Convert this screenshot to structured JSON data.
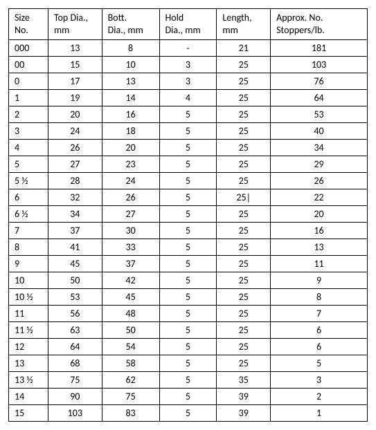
{
  "table": {
    "type": "table",
    "background_color": "#ffffff",
    "border_color": "#000000",
    "font_family": "Calibri, sans-serif",
    "font_size_pt": 11,
    "columns": [
      {
        "key": "size",
        "line1": "Size",
        "line2": "No.",
        "align": "left",
        "width_pct": 11
      },
      {
        "key": "top",
        "line1": "Top Dia.,",
        "line2": "mm",
        "align": "center",
        "width_pct": 15
      },
      {
        "key": "bott",
        "line1": "Bott.",
        "line2": "Dia., mm",
        "align": "center",
        "width_pct": 16
      },
      {
        "key": "hold",
        "line1": "Hold",
        "line2": "Dia., mm",
        "align": "center",
        "width_pct": 16
      },
      {
        "key": "length",
        "line1": "Length,",
        "line2": "mm",
        "align": "center",
        "width_pct": 15
      },
      {
        "key": "approx",
        "line1": "Approx. No.",
        "line2": "Stoppers/lb.",
        "align": "center",
        "width_pct": 27
      }
    ],
    "rows": [
      {
        "size": "000",
        "top": "13",
        "bott": "8",
        "hold": "-",
        "length": "21",
        "approx": "181"
      },
      {
        "size": "00",
        "top": "15",
        "bott": "10",
        "hold": "3",
        "length": "25",
        "approx": "103"
      },
      {
        "size": "0",
        "top": "17",
        "bott": "13",
        "hold": "3",
        "length": "25",
        "approx": "76"
      },
      {
        "size": "1",
        "top": "19",
        "bott": "14",
        "hold": "4",
        "length": "25",
        "approx": "64"
      },
      {
        "size": "2",
        "top": "20",
        "bott": "16",
        "hold": "5",
        "length": "25",
        "approx": "53"
      },
      {
        "size": "3",
        "top": "24",
        "bott": "18",
        "hold": "5",
        "length": "25",
        "approx": "40"
      },
      {
        "size": "4",
        "top": "26",
        "bott": "20",
        "hold": "5",
        "length": "25",
        "approx": "34"
      },
      {
        "size": "5",
        "top": "27",
        "bott": "23",
        "hold": "5",
        "length": "25",
        "approx": "29"
      },
      {
        "size": "5 ½",
        "top": "28",
        "bott": "24",
        "hold": "5",
        "length": "25",
        "approx": "26"
      },
      {
        "size": "6",
        "top": "32",
        "bott": "26",
        "hold": "5",
        "length": "25|",
        "approx": "22"
      },
      {
        "size": "6 ½",
        "top": "34",
        "bott": "27",
        "hold": "5",
        "length": "25",
        "approx": "20"
      },
      {
        "size": "7",
        "top": "37",
        "bott": "30",
        "hold": "5",
        "length": "25",
        "approx": "16"
      },
      {
        "size": "8",
        "top": "41",
        "bott": "33",
        "hold": "5",
        "length": "25",
        "approx": "13"
      },
      {
        "size": "9",
        "top": "45",
        "bott": "37",
        "hold": "5",
        "length": "25",
        "approx": "11"
      },
      {
        "size": "10",
        "top": "50",
        "bott": "42",
        "hold": "5",
        "length": "25",
        "approx": "9"
      },
      {
        "size": "10 ½",
        "top": "53",
        "bott": "45",
        "hold": "5",
        "length": "25",
        "approx": "8"
      },
      {
        "size": "11",
        "top": "56",
        "bott": "48",
        "hold": "5",
        "length": "25",
        "approx": "7"
      },
      {
        "size": "11 ½",
        "top": "63",
        "bott": "50",
        "hold": "5",
        "length": "25",
        "approx": "6"
      },
      {
        "size": "12",
        "top": "64",
        "bott": "54",
        "hold": "5",
        "length": "25",
        "approx": "6"
      },
      {
        "size": "13",
        "top": "68",
        "bott": "58",
        "hold": "5",
        "length": "25",
        "approx": "5"
      },
      {
        "size": "13 ½",
        "top": "75",
        "bott": "62",
        "hold": "5",
        "length": "35",
        "approx": "3"
      },
      {
        "size": "14",
        "top": "90",
        "bott": "75",
        "hold": "5",
        "length": "39",
        "approx": "2"
      },
      {
        "size": "15",
        "top": "103",
        "bott": "83",
        "hold": "5",
        "length": "39",
        "approx": "1"
      }
    ]
  }
}
